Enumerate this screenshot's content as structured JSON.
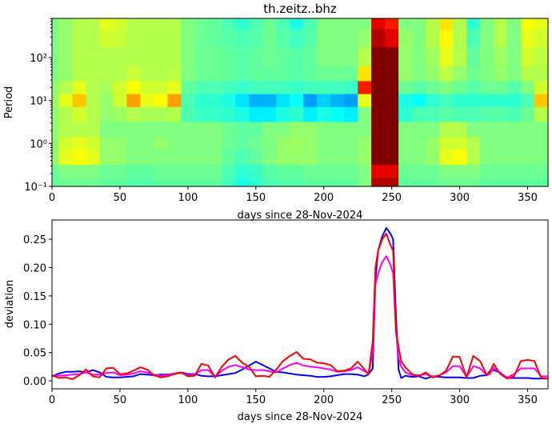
{
  "chart_data": [
    {
      "type": "heatmap",
      "title": "th.zeitz..bhz",
      "xlabel": "days since 28-Nov-2024",
      "ylabel": "Period",
      "xlim": [
        0,
        365
      ],
      "ylim": [
        0.1,
        820
      ],
      "yscale": "log",
      "colormap": "jet",
      "grid": false,
      "xticks": [
        0,
        50,
        100,
        150,
        200,
        250,
        300,
        350
      ],
      "xtick_labels": [
        "0",
        "50",
        "100",
        "150",
        "200",
        "250",
        "300",
        "350"
      ],
      "yticks": [
        0.1,
        1,
        10,
        100
      ],
      "ytick_labels": [
        "10⁻¹",
        "10⁰",
        "10¹",
        "10²"
      ],
      "x": [
        0,
        10,
        20,
        30,
        40,
        50,
        60,
        70,
        80,
        90,
        100,
        110,
        120,
        130,
        140,
        150,
        160,
        170,
        180,
        190,
        200,
        210,
        220,
        230,
        240,
        250,
        260,
        270,
        280,
        290,
        300,
        310,
        320,
        330,
        340,
        350,
        360
      ],
      "periods": [
        700,
        300,
        100,
        40,
        20,
        10,
        5,
        2,
        1,
        0.5,
        0.2,
        0.12
      ],
      "values": [
        [
          0.5,
          0.52,
          0.55,
          0.55,
          0.6,
          0.58,
          0.55,
          0.55,
          0.55,
          0.55,
          0.5,
          0.48,
          0.47,
          0.45,
          0.42,
          0.45,
          0.48,
          0.45,
          0.4,
          0.45,
          0.5,
          0.5,
          0.5,
          0.5,
          0.9,
          0.85,
          0.5,
          0.5,
          0.55,
          0.65,
          0.55,
          0.42,
          0.5,
          0.55,
          0.5,
          0.62,
          0.6
        ],
        [
          0.5,
          0.52,
          0.55,
          0.55,
          0.58,
          0.57,
          0.55,
          0.55,
          0.55,
          0.55,
          0.5,
          0.48,
          0.47,
          0.46,
          0.45,
          0.46,
          0.48,
          0.46,
          0.44,
          0.46,
          0.5,
          0.5,
          0.5,
          0.52,
          0.95,
          0.9,
          0.52,
          0.5,
          0.55,
          0.63,
          0.55,
          0.45,
          0.5,
          0.55,
          0.5,
          0.6,
          0.58
        ],
        [
          0.5,
          0.52,
          0.55,
          0.55,
          0.55,
          0.55,
          0.55,
          0.55,
          0.55,
          0.55,
          0.5,
          0.48,
          0.48,
          0.47,
          0.46,
          0.47,
          0.48,
          0.47,
          0.46,
          0.47,
          0.5,
          0.5,
          0.5,
          0.55,
          1,
          1,
          0.52,
          0.5,
          0.53,
          0.6,
          0.55,
          0.47,
          0.5,
          0.53,
          0.5,
          0.58,
          0.56
        ],
        [
          0.5,
          0.52,
          0.55,
          0.55,
          0.55,
          0.55,
          0.57,
          0.55,
          0.55,
          0.56,
          0.5,
          0.48,
          0.48,
          0.47,
          0.46,
          0.47,
          0.47,
          0.47,
          0.46,
          0.47,
          0.48,
          0.48,
          0.48,
          0.65,
          1,
          1,
          0.52,
          0.5,
          0.52,
          0.56,
          0.52,
          0.48,
          0.5,
          0.52,
          0.5,
          0.55,
          0.55
        ],
        [
          0.52,
          0.55,
          0.6,
          0.55,
          0.54,
          0.58,
          0.62,
          0.58,
          0.58,
          0.6,
          0.47,
          0.45,
          0.45,
          0.44,
          0.43,
          0.44,
          0.44,
          0.44,
          0.43,
          0.44,
          0.44,
          0.44,
          0.43,
          0.85,
          1,
          1,
          0.48,
          0.46,
          0.48,
          0.5,
          0.48,
          0.46,
          0.48,
          0.48,
          0.46,
          0.5,
          0.58
        ],
        [
          0.52,
          0.6,
          0.68,
          0.55,
          0.52,
          0.58,
          0.72,
          0.6,
          0.62,
          0.72,
          0.45,
          0.42,
          0.42,
          0.4,
          0.35,
          0.3,
          0.3,
          0.35,
          0.38,
          0.28,
          0.33,
          0.3,
          0.28,
          0.6,
          1,
          1,
          0.4,
          0.38,
          0.42,
          0.44,
          0.42,
          0.42,
          0.42,
          0.42,
          0.42,
          0.45,
          0.68
        ],
        [
          0.52,
          0.55,
          0.58,
          0.55,
          0.52,
          0.53,
          0.55,
          0.54,
          0.54,
          0.55,
          0.45,
          0.43,
          0.43,
          0.42,
          0.4,
          0.36,
          0.36,
          0.4,
          0.42,
          0.36,
          0.4,
          0.38,
          0.36,
          0.5,
          1,
          1,
          0.42,
          0.45,
          0.45,
          0.46,
          0.45,
          0.45,
          0.46,
          0.46,
          0.45,
          0.48,
          0.55
        ],
        [
          0.52,
          0.55,
          0.55,
          0.55,
          0.5,
          0.5,
          0.5,
          0.5,
          0.5,
          0.5,
          0.5,
          0.5,
          0.5,
          0.48,
          0.47,
          0.47,
          0.5,
          0.5,
          0.52,
          0.52,
          0.5,
          0.5,
          0.5,
          0.5,
          1,
          1,
          0.5,
          0.5,
          0.5,
          0.55,
          0.55,
          0.5,
          0.5,
          0.5,
          0.5,
          0.5,
          0.5
        ],
        [
          0.52,
          0.58,
          0.6,
          0.58,
          0.52,
          0.52,
          0.5,
          0.5,
          0.52,
          0.5,
          0.5,
          0.5,
          0.5,
          0.48,
          0.47,
          0.48,
          0.5,
          0.52,
          0.53,
          0.52,
          0.5,
          0.5,
          0.5,
          0.52,
          1,
          1,
          0.5,
          0.5,
          0.52,
          0.58,
          0.58,
          0.55,
          0.5,
          0.5,
          0.5,
          0.5,
          0.5
        ],
        [
          0.52,
          0.6,
          0.62,
          0.6,
          0.52,
          0.52,
          0.5,
          0.5,
          0.5,
          0.5,
          0.5,
          0.5,
          0.5,
          0.47,
          0.45,
          0.47,
          0.5,
          0.52,
          0.52,
          0.52,
          0.5,
          0.5,
          0.5,
          0.52,
          1,
          1,
          0.5,
          0.5,
          0.52,
          0.6,
          0.62,
          0.55,
          0.5,
          0.5,
          0.5,
          0.5,
          0.5
        ],
        [
          0.48,
          0.5,
          0.5,
          0.5,
          0.48,
          0.48,
          0.47,
          0.47,
          0.48,
          0.48,
          0.48,
          0.48,
          0.48,
          0.45,
          0.42,
          0.43,
          0.46,
          0.47,
          0.47,
          0.48,
          0.48,
          0.48,
          0.48,
          0.5,
          0.9,
          0.9,
          0.48,
          0.48,
          0.48,
          0.5,
          0.5,
          0.5,
          0.48,
          0.48,
          0.48,
          0.48,
          0.48
        ],
        [
          0.47,
          0.48,
          0.48,
          0.48,
          0.47,
          0.47,
          0.46,
          0.46,
          0.47,
          0.47,
          0.47,
          0.47,
          0.47,
          0.44,
          0.4,
          0.42,
          0.45,
          0.46,
          0.46,
          0.47,
          0.47,
          0.47,
          0.47,
          0.5,
          0.95,
          0.95,
          0.47,
          0.47,
          0.47,
          0.48,
          0.48,
          0.48,
          0.47,
          0.47,
          0.47,
          0.47,
          0.47
        ]
      ]
    },
    {
      "type": "line",
      "xlabel": "days since 28-Nov-2024",
      "ylabel": "deviation",
      "xlim": [
        0,
        365
      ],
      "ylim": [
        -0.014,
        0.284
      ],
      "grid": false,
      "xticks": [
        0,
        50,
        100,
        150,
        200,
        250,
        300,
        350
      ],
      "xtick_labels": [
        "0",
        "50",
        "100",
        "150",
        "200",
        "250",
        "300",
        "350"
      ],
      "yticks": [
        0,
        0.05,
        0.1,
        0.15,
        0.2,
        0.25
      ],
      "ytick_labels": [
        "0.00",
        "0.05",
        "0.10",
        "0.15",
        "0.20",
        "0.25"
      ],
      "x": [
        0,
        5,
        10,
        15,
        20,
        25,
        30,
        35,
        40,
        45,
        50,
        55,
        60,
        65,
        70,
        75,
        80,
        85,
        90,
        95,
        100,
        105,
        110,
        115,
        120,
        125,
        130,
        135,
        140,
        145,
        150,
        155,
        160,
        165,
        170,
        175,
        180,
        185,
        190,
        195,
        200,
        205,
        210,
        215,
        220,
        225,
        230,
        233,
        236,
        238,
        240,
        243,
        246,
        249,
        251,
        253,
        255,
        257,
        260,
        265,
        270,
        275,
        280,
        285,
        290,
        295,
        300,
        305,
        310,
        315,
        320,
        322,
        325,
        330,
        335,
        340,
        345,
        350,
        355,
        360,
        365
      ],
      "series": [
        {
          "color": "#0000ff",
          "values": [
            0.008,
            0.013,
            0.016,
            0.016,
            0.017,
            0.015,
            0.019,
            0.015,
            0.007,
            0.006,
            0.006,
            0.007,
            0.008,
            0.012,
            0.011,
            0.01,
            0.011,
            0.011,
            0.013,
            0.015,
            0.012,
            0.012,
            0.009,
            0.008,
            0.008,
            0.01,
            0.012,
            0.014,
            0.02,
            0.027,
            0.034,
            0.028,
            0.022,
            0.016,
            0.015,
            0.013,
            0.011,
            0.01,
            0.009,
            0.007,
            0.007,
            0.008,
            0.01,
            0.012,
            0.012,
            0.011,
            0.008,
            0.012,
            0.022,
            0.18,
            0.23,
            0.255,
            0.27,
            0.26,
            0.25,
            0.12,
            0.02,
            0.005,
            0.009,
            0.007,
            0.008,
            0.004,
            0.008,
            0.007,
            0.006,
            0.006,
            0.006,
            0.005,
            0.005,
            0.009,
            0.01,
            0.017,
            0.019,
            0.014,
            0.005,
            0.005,
            0.005,
            0.005,
            0.004,
            0.004,
            0.004
          ]
        },
        {
          "color": "#ff00ff",
          "values": [
            0.009,
            0.009,
            0.01,
            0.011,
            0.012,
            0.015,
            0.011,
            0.011,
            0.014,
            0.015,
            0.01,
            0.011,
            0.013,
            0.017,
            0.015,
            0.011,
            0.009,
            0.01,
            0.013,
            0.014,
            0.01,
            0.011,
            0.019,
            0.019,
            0.007,
            0.018,
            0.025,
            0.028,
            0.024,
            0.02,
            0.019,
            0.019,
            0.017,
            0.015,
            0.022,
            0.028,
            0.032,
            0.027,
            0.025,
            0.024,
            0.022,
            0.02,
            0.016,
            0.017,
            0.019,
            0.024,
            0.017,
            0.013,
            0.05,
            0.17,
            0.19,
            0.21,
            0.22,
            0.205,
            0.19,
            0.09,
            0.04,
            0.025,
            0.015,
            0.01,
            0.01,
            0.012,
            0.007,
            0.01,
            0.015,
            0.026,
            0.026,
            0.007,
            0.026,
            0.022,
            0.01,
            0.012,
            0.023,
            0.013,
            0.006,
            0.012,
            0.022,
            0.022,
            0.022,
            0.008,
            0.008
          ]
        },
        {
          "color": "#ff0000",
          "values": [
            0.01,
            0.005,
            0.006,
            0.003,
            0.01,
            0.02,
            0.008,
            0.006,
            0.022,
            0.023,
            0.012,
            0.013,
            0.018,
            0.024,
            0.02,
            0.01,
            0.006,
            0.008,
            0.012,
            0.015,
            0.008,
            0.009,
            0.03,
            0.027,
            0.006,
            0.025,
            0.038,
            0.044,
            0.032,
            0.025,
            0.008,
            0.009,
            0.007,
            0.02,
            0.035,
            0.044,
            0.051,
            0.039,
            0.038,
            0.032,
            0.031,
            0.028,
            0.017,
            0.018,
            0.022,
            0.034,
            0.02,
            0.012,
            0.07,
            0.2,
            0.23,
            0.25,
            0.26,
            0.24,
            0.23,
            0.09,
            0.06,
            0.035,
            0.024,
            0.012,
            0.008,
            0.015,
            0.006,
            0.009,
            0.018,
            0.043,
            0.042,
            0.006,
            0.044,
            0.035,
            0.01,
            0.015,
            0.03,
            0.012,
            0.004,
            0.008,
            0.035,
            0.037,
            0.035,
            0.005,
            0.004
          ]
        }
      ]
    }
  ]
}
